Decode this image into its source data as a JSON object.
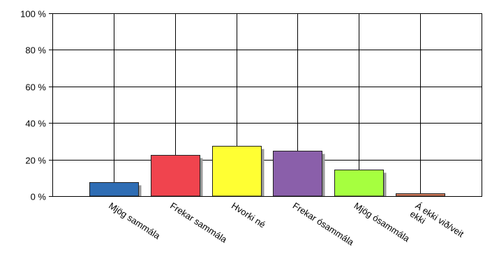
{
  "chart_data": {
    "type": "bar",
    "title": "",
    "xlabel": "",
    "ylabel": "",
    "y_unit": "%",
    "ylim": [
      0,
      100
    ],
    "yticks": [
      0,
      20,
      40,
      60,
      80,
      100
    ],
    "ytick_labels": [
      "0 %",
      "20 %",
      "40 %",
      "60 %",
      "80 %",
      "100 %"
    ],
    "grid": true,
    "legend": "none",
    "categories": [
      "Mjög sammála",
      "Frekar sammála",
      "Hvorki né",
      "Frekar ósammála",
      "Mjög ósammála",
      "Á ekki við/veit ekki"
    ],
    "category_label_lines": [
      [
        "Mjög sammála"
      ],
      [
        "Frekar sammála"
      ],
      [
        "Hvorki né"
      ],
      [
        "Frekar ósammála"
      ],
      [
        "Mjög ósammála"
      ],
      [
        "Á ekki við/veit",
        "ekki"
      ]
    ],
    "values": [
      7.5,
      22.5,
      27.5,
      25,
      14.5,
      1.5
    ],
    "colors": [
      "#2E6DB4",
      "#F0444E",
      "#FFFF33",
      "#8A5FAA",
      "#A6FF3F",
      "#D27A5A"
    ]
  }
}
